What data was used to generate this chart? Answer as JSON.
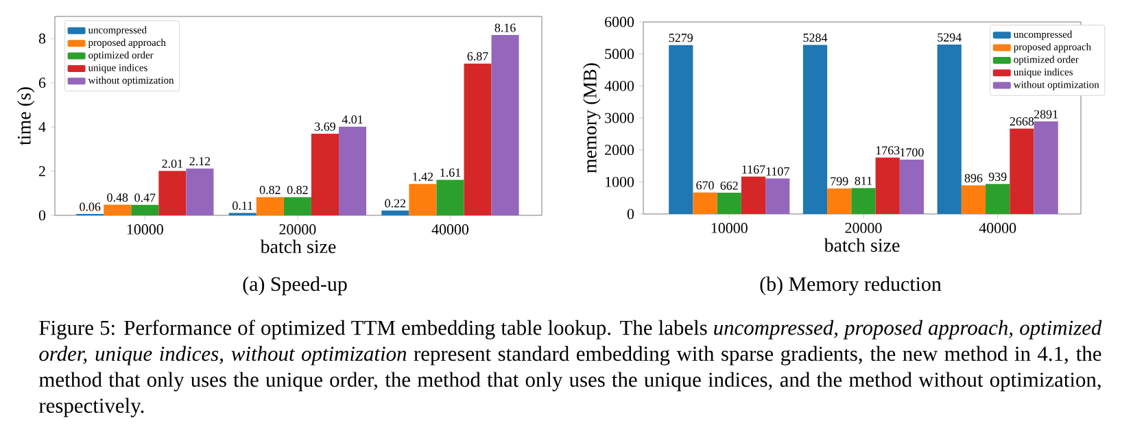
{
  "chart_data": [
    {
      "type": "bar",
      "title": "(a) Speed-up",
      "xlabel": "batch size",
      "ylabel": "time (s)",
      "categories": [
        "10000",
        "20000",
        "40000"
      ],
      "series": [
        {
          "name": "uncompressed",
          "color": "#1f77b4",
          "values": [
            0.06,
            0.11,
            0.22
          ]
        },
        {
          "name": "proposed approach",
          "color": "#ff7f0e",
          "values": [
            0.48,
            0.82,
            1.42
          ]
        },
        {
          "name": "optimized order",
          "color": "#2ca02c",
          "values": [
            0.47,
            0.82,
            1.61
          ]
        },
        {
          "name": "unique indices",
          "color": "#d62728",
          "values": [
            2.01,
            3.69,
            6.87
          ]
        },
        {
          "name": "without optimization",
          "color": "#9467bd",
          "values": [
            2.12,
            4.01,
            8.16
          ]
        }
      ],
      "ylim": [
        0,
        9
      ],
      "yticks": [
        0,
        2,
        4,
        6,
        8
      ],
      "data_labels": true,
      "legend": "top left"
    },
    {
      "type": "bar",
      "title": "(b) Memory reduction",
      "xlabel": "batch size",
      "ylabel": "memory (MB)",
      "categories": [
        "10000",
        "20000",
        "40000"
      ],
      "series": [
        {
          "name": "uncompressed",
          "color": "#1f77b4",
          "values": [
            5279,
            5284,
            5294
          ]
        },
        {
          "name": "proposed approach",
          "color": "#ff7f0e",
          "values": [
            670,
            799,
            896
          ]
        },
        {
          "name": "optimized order",
          "color": "#2ca02c",
          "values": [
            662,
            811,
            939
          ]
        },
        {
          "name": "unique indices",
          "color": "#d62728",
          "values": [
            1167,
            1763,
            2668
          ]
        },
        {
          "name": "without optimization",
          "color": "#9467bd",
          "values": [
            1107,
            1700,
            2891
          ]
        }
      ],
      "ylim": [
        0,
        6000
      ],
      "yticks": [
        0,
        1000,
        2000,
        3000,
        4000,
        5000,
        6000
      ],
      "data_labels": true,
      "legend": "top right"
    },
    {
      "type": "other",
      "annotations": [
        "Figure 5: Performance of optimized TTM embedding table lookup. The labels *uncompressed, proposed approach, optimized order, unique indices, without optimization* represent standard embedding with sparse gradients, the new method in 4.1, the method that only uses the unique order, the method that only uses the unique indices, and the method without optimization, respectively."
      ]
    }
  ]
}
